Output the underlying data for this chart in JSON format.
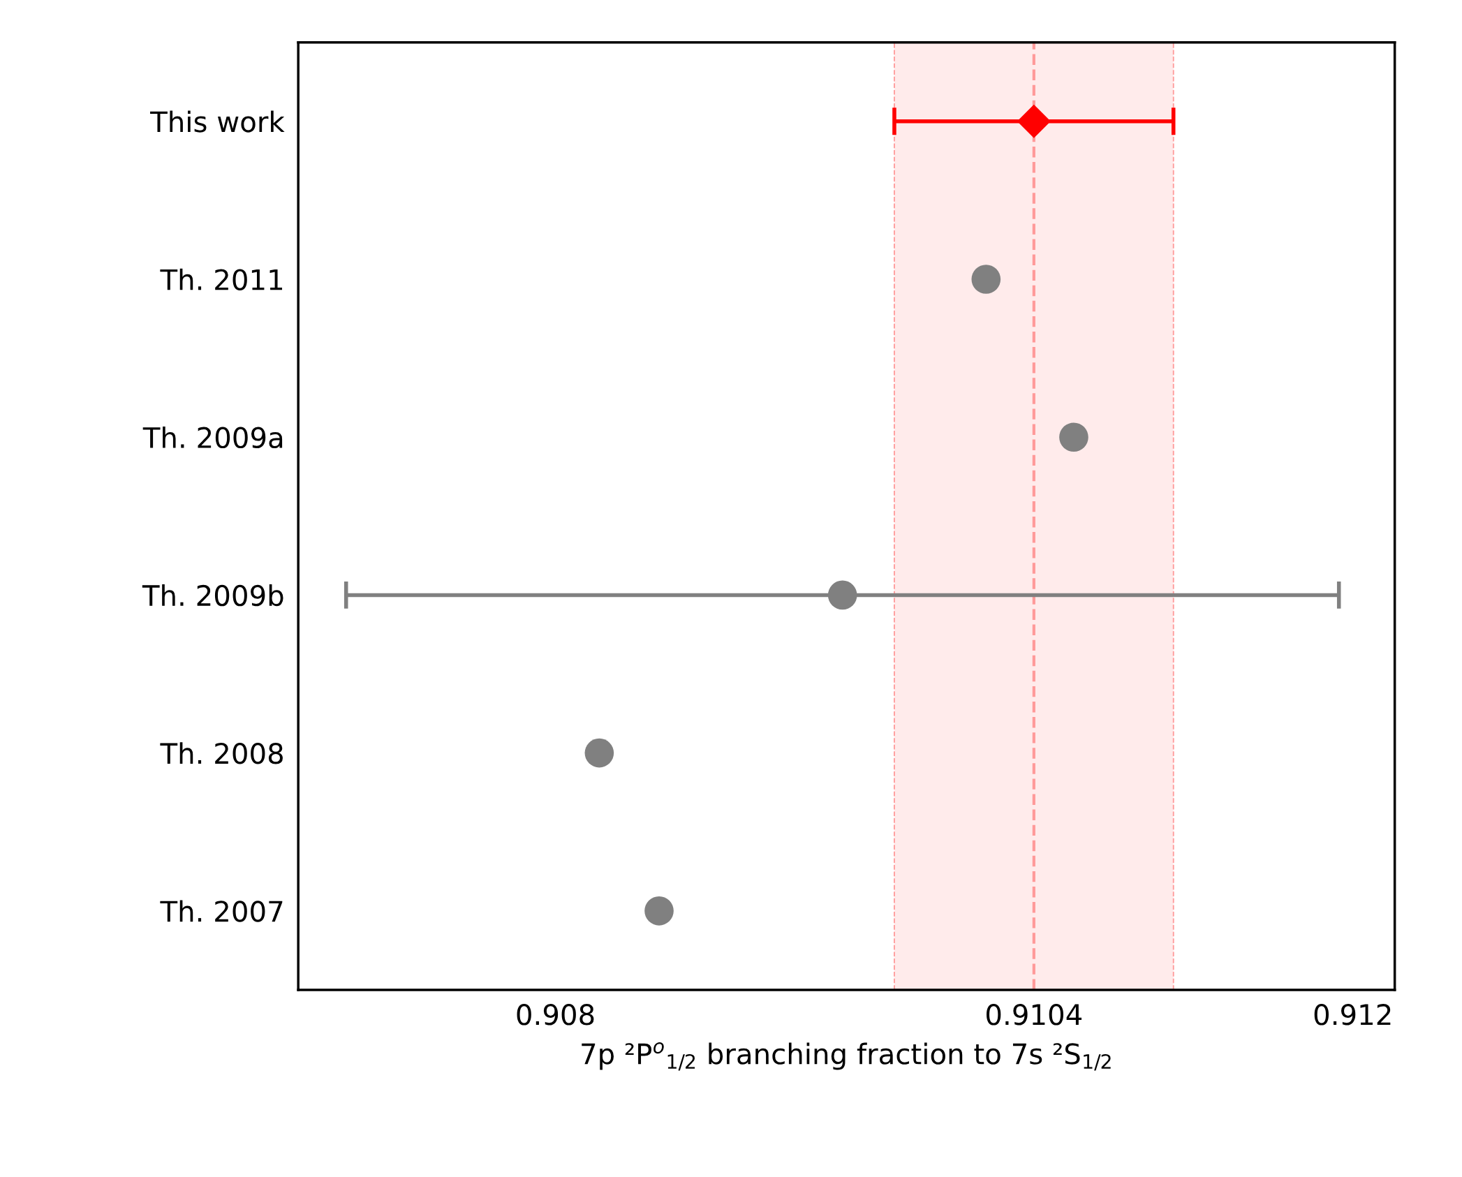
{
  "chart_data": {
    "type": "scatter",
    "orientation": "horizontal",
    "xlabel": "7p ²P$^{o}$$_{1/2}$ branching fraction to 7s ²S$_{1/2}$",
    "categories": [
      "This work",
      "Th. 2011",
      "Th. 2009a",
      "Th. 2009b",
      "Th. 2008",
      "Th. 2007"
    ],
    "series": [
      {
        "color": "#ff0000",
        "marker": "diamond",
        "values": [
          0.9104,
          null,
          null,
          null,
          null,
          null
        ],
        "errors": [
          0.0007,
          null,
          null,
          null,
          null,
          null
        ]
      },
      {
        "color": "#808080",
        "marker": "circle",
        "values": [
          null,
          0.91016,
          0.9106,
          0.90944,
          0.90822,
          0.90852
        ],
        "errors": [
          null,
          null,
          null,
          [
            0.90695,
            0.91193
          ],
          null,
          null
        ]
      }
    ],
    "xlim": [
      0.90671,
      0.91221
    ],
    "xticks": [
      0.908,
      0.9104,
      0.912
    ],
    "ref_lines": [
      {
        "axis": "x",
        "value": 0.9104,
        "color": "#ff9999",
        "line_style": "dashed"
      },
      {
        "axis": "x",
        "value": 0.9097,
        "color": "#ff9999",
        "line_style": "dashed"
      },
      {
        "axis": "x",
        "value": 0.9111,
        "color": "#ff9999",
        "line_style": "dashed"
      }
    ],
    "bands": [
      {
        "axis": "x",
        "from": 0.9097,
        "to": 0.9111,
        "color": "#ffebeb"
      }
    ],
    "grid": false,
    "legend": false
  }
}
